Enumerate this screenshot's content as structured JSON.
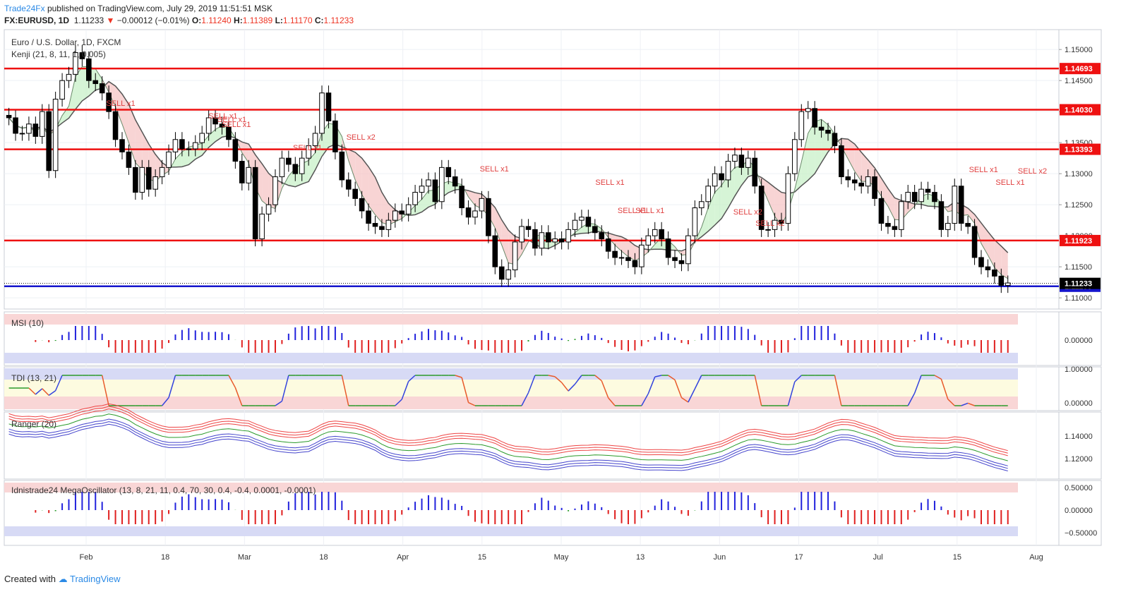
{
  "header": {
    "publisher": "Trade24Fx",
    "published_text": "published on TradingView.com, July 29, 2019 11:51:51 MSK",
    "symbol": "FX:EURUSD, 1D",
    "last": "1.11233",
    "change": "−0.00012 (−0.01%)",
    "o_label": "O:",
    "o": "1.11240",
    "h_label": "H:",
    "h": "1.11389",
    "l_label": "L:",
    "l": "1.11170",
    "c_label": "C:",
    "c": "1.11233"
  },
  "footer": {
    "prefix": "Created with",
    "brand": "TradingView"
  },
  "colors": {
    "up": "#ffffff",
    "down": "#000000",
    "level": "#ee1111",
    "support": "#1515cc",
    "grid": "#eef0f5",
    "sell": "#e04040"
  },
  "chart_data": {
    "type": "candlestick",
    "title": "Euro / U.S. Dollar, 1D, FXCM",
    "subtitle": "Kenji (21, 8, 11, 1, 0.005)",
    "x_tick_labels": [
      "Feb",
      "18",
      "Mar",
      "18",
      "Apr",
      "15",
      "May",
      "13",
      "Jun",
      "17",
      "Jul",
      "15",
      "Aug"
    ],
    "y_ticks": [
      "1.15000",
      "1.14500",
      "1.14000",
      "1.13500",
      "1.13000",
      "1.12500",
      "1.12000",
      "1.11500",
      "1.11000"
    ],
    "ylim": [
      1.1082,
      1.1532
    ],
    "price_label": "1.11233",
    "horizontal_levels": [
      {
        "value": 1.14693,
        "label": "1.14693",
        "color": "#ee1111"
      },
      {
        "value": 1.1403,
        "label": "1.14030",
        "color": "#ee1111"
      },
      {
        "value": 1.13393,
        "label": "1.13393",
        "color": "#ee1111"
      },
      {
        "value": 1.11923,
        "label": "1.11923",
        "color": "#ee1111"
      },
      {
        "value": 1.11186,
        "label": "1.11186",
        "color": "#1515cc"
      }
    ],
    "close": [
      1.139,
      1.1365,
      1.1365,
      1.138,
      1.136,
      1.14,
      1.1305,
      1.142,
      1.145,
      1.146,
      1.1495,
      1.1485,
      1.145,
      1.1445,
      1.143,
      1.14,
      1.1355,
      1.1335,
      1.131,
      1.127,
      1.131,
      1.1275,
      1.1295,
      1.131,
      1.1335,
      1.1355,
      1.134,
      1.134,
      1.135,
      1.1365,
      1.139,
      1.138,
      1.1375,
      1.1355,
      1.132,
      1.1285,
      1.131,
      1.1195,
      1.1235,
      1.125,
      1.1295,
      1.1325,
      1.1315,
      1.13,
      1.1325,
      1.1345,
      1.1365,
      1.143,
      1.1385,
      1.1335,
      1.129,
      1.1275,
      1.126,
      1.124,
      1.122,
      1.1215,
      1.121,
      1.1225,
      1.124,
      1.1235,
      1.125,
      1.127,
      1.128,
      1.129,
      1.1255,
      1.131,
      1.1295,
      1.128,
      1.1245,
      1.123,
      1.124,
      1.126,
      1.12,
      1.115,
      1.113,
      1.1145,
      1.119,
      1.1215,
      1.121,
      1.118,
      1.1205,
      1.119,
      1.1195,
      1.119,
      1.121,
      1.1225,
      1.123,
      1.1215,
      1.1205,
      1.1195,
      1.1175,
      1.1165,
      1.1165,
      1.116,
      1.115,
      1.1185,
      1.12,
      1.121,
      1.1195,
      1.1165,
      1.116,
      1.1155,
      1.12,
      1.1245,
      1.1255,
      1.128,
      1.13,
      1.129,
      1.132,
      1.133,
      1.131,
      1.1325,
      1.128,
      1.121,
      1.121,
      1.1225,
      1.122,
      1.13,
      1.1355,
      1.14,
      1.1405,
      1.1375,
      1.137,
      1.1365,
      1.1345,
      1.1295,
      1.129,
      1.1285,
      1.128,
      1.1295,
      1.126,
      1.122,
      1.1215,
      1.121,
      1.1255,
      1.127,
      1.1255,
      1.1275,
      1.127,
      1.1255,
      1.121,
      1.122,
      1.128,
      1.122,
      1.1215,
      1.1165,
      1.115,
      1.1145,
      1.1135,
      1.112,
      1.1124
    ]
  },
  "msi": {
    "title": "MSI (10)",
    "y_tick": "0.00000"
  },
  "tdi": {
    "title": "TDI (13, 21)",
    "y_ticks": [
      "1.00000",
      "0.00000"
    ]
  },
  "ranger": {
    "title": "Ranger (20)",
    "y_ticks": [
      "1.14000",
      "1.12000"
    ]
  },
  "mega": {
    "title": "Idnistrade24 MegaOscillator (13, 8, 21, 11, 0.4, 70, 30, 0.4, -0.4, 0.0001, -0.0001)",
    "y_ticks": [
      "0.50000",
      "0.00000",
      "−0.50000"
    ]
  },
  "sell_signals": [
    "SELL x1",
    "SELL x1",
    "SELL x1",
    "SELL x1",
    "SELL x1",
    "SELL x2",
    "SELL x1",
    "SELL x1",
    "SELL x1",
    "SELL x1",
    "SELL x2",
    "SELL x2",
    "SELL x1",
    "SELL x1",
    "SELL x2"
  ]
}
